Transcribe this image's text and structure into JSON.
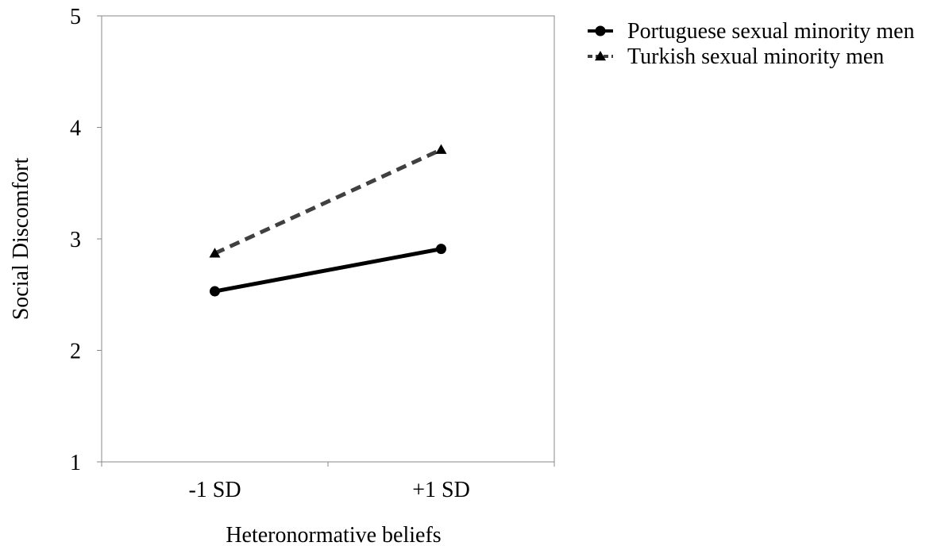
{
  "chart_data": {
    "type": "line",
    "categories": [
      "-1 SD",
      "+1 SD"
    ],
    "series": [
      {
        "name": "Portuguese sexual minority men",
        "values": [
          2.53,
          2.91
        ],
        "marker": "circle",
        "line_style": "solid",
        "color": "#000000"
      },
      {
        "name": "Turkish sexual minority men",
        "values": [
          2.87,
          3.8
        ],
        "marker": "triangle",
        "line_style": "dashed",
        "color": "#404040"
      }
    ],
    "xlabel": "Heteronormative beliefs",
    "ylabel": "Social Discomfort",
    "ylim": [
      1,
      5
    ],
    "yticks": [
      1,
      2,
      3,
      4,
      5
    ],
    "grid": false,
    "legend_position": "top-right, outside plot"
  }
}
